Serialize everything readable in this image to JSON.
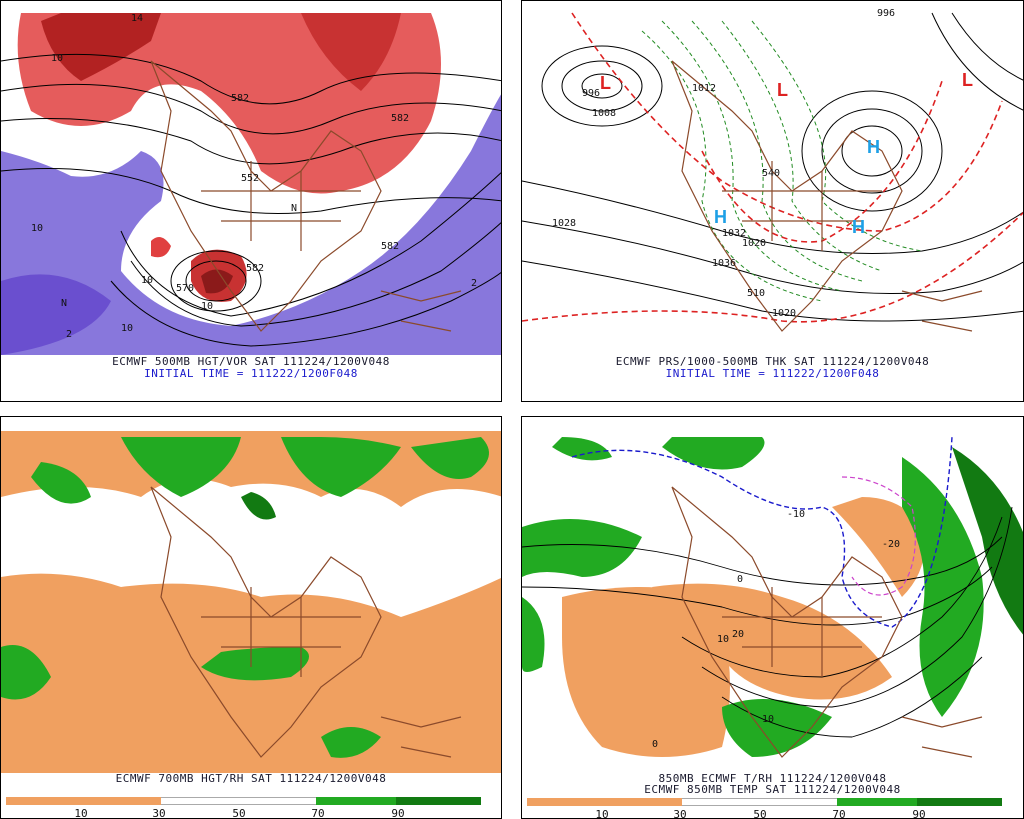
{
  "panels": [
    {
      "id": "p1",
      "caption1": "ECMWF 500MB HGT/VOR SAT 111224/1200V048",
      "caption2": "INITIAL TIME = 111222/1200F048",
      "labels": [
        "14",
        "10",
        "10",
        "582",
        "N",
        "570",
        "10",
        "2",
        "582",
        "10",
        "N",
        "552",
        "582",
        "582",
        "10",
        "2"
      ]
    },
    {
      "id": "p2",
      "caption1": "ECMWF PRS/1000-500MB THK SAT 111224/1200V048",
      "caption2": "INITIAL TIME = 111222/1200F048",
      "labels": [
        "996",
        "1008",
        "1012",
        "L",
        "L",
        "L",
        "H",
        "H",
        "H",
        "1028",
        "1020",
        "1036",
        "1032",
        "1020",
        "540",
        "510",
        "996"
      ]
    },
    {
      "id": "p3",
      "caption1": "ECMWF 700MB HGT/RH SAT 111224/1200V048",
      "colorbar": [
        "10",
        "30",
        "50",
        "70",
        "90"
      ]
    },
    {
      "id": "p4",
      "caption1": "850MB ECMWF T/RH 111224/1200V048",
      "caption2": "ECMWF 850MB TEMP SAT 111224/1200V048",
      "labels": [
        "-10",
        "0",
        "10",
        "20",
        "10",
        "0",
        "-20"
      ],
      "colorbar": [
        "10",
        "30",
        "50",
        "70",
        "90"
      ]
    }
  ],
  "colors": {
    "vort_red": "#e04040",
    "vort_darkred": "#8b1a1a",
    "vort_purple": "#7b68d8",
    "rh_orange": "#f0a060",
    "rh_green": "#22aa22",
    "rh_darkgreen": "#127a12",
    "coast_brown": "#8b4a2b",
    "caption_blue": "#1a1acc"
  }
}
